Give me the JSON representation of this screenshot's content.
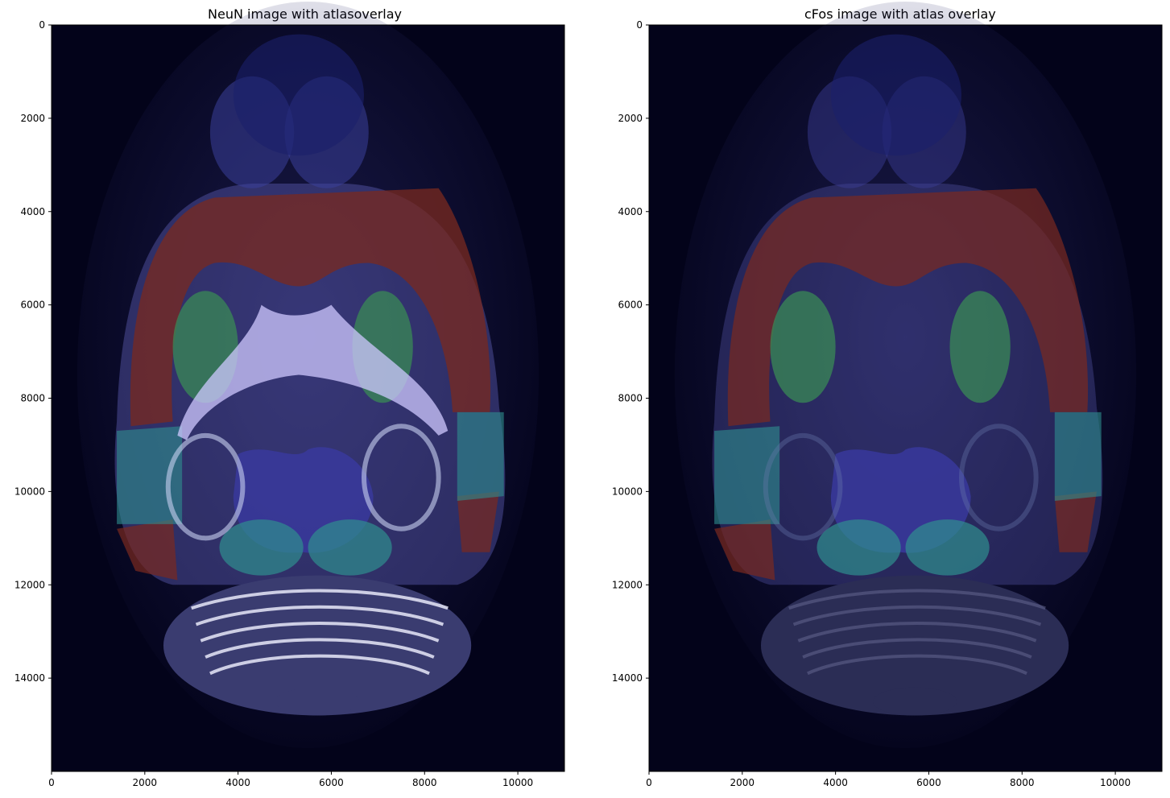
{
  "figure": {
    "panels": [
      {
        "title": "NeuN image with atlasoverlay",
        "kind": "neun",
        "xticks": [
          0,
          2000,
          4000,
          6000,
          8000,
          10000
        ],
        "yticks": [
          0,
          2000,
          4000,
          6000,
          8000,
          10000,
          12000,
          14000
        ],
        "xlim": [
          0,
          11000
        ],
        "ylim": [
          16000,
          0
        ]
      },
      {
        "title": "cFos image with atlas overlay",
        "kind": "cfos",
        "xticks": [
          0,
          2000,
          4000,
          6000,
          8000,
          10000
        ],
        "yticks": [
          0,
          2000,
          4000,
          6000,
          8000,
          10000,
          12000,
          14000
        ],
        "xlim": [
          0,
          11000
        ],
        "ylim": [
          16000,
          0
        ]
      }
    ],
    "colors": {
      "background_image": "#03031a",
      "cortex_overlay": "#7a2a1f",
      "striatum_overlay": "#3a8a55",
      "hippocampal_overlay": "#2f8f8f",
      "midbrain_overlay": "#3a3aa0",
      "tissue_tint": "#5a5ab0",
      "ventricle": "#cfc8ff"
    }
  }
}
